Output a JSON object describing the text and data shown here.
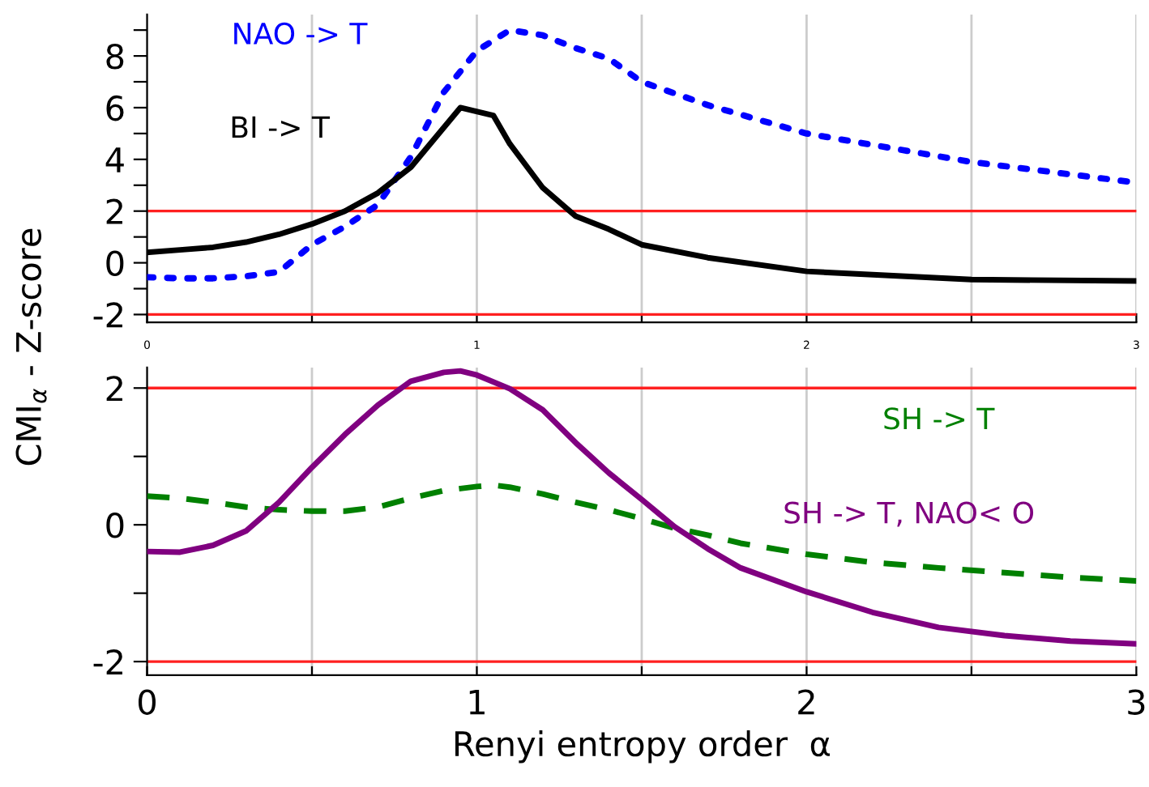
{
  "chart_data": [
    {
      "type": "line",
      "ylabel": "CMI$_{α}$ - Z-score",
      "grid": "x",
      "tick_labels": "xy",
      "xlim": [
        0,
        3
      ],
      "xticks": [
        0,
        {
          "value": 0.5,
          "label": null
        },
        1,
        {
          "value": 1.5,
          "label": null
        },
        2,
        {
          "value": 2.5,
          "label": null
        },
        3
      ],
      "ylim": [
        -2.3,
        9.6
      ],
      "yticks": [
        -2,
        {
          "value": -1,
          "label": null
        },
        0,
        {
          "value": 1,
          "label": null
        },
        2,
        {
          "value": 3,
          "label": null
        },
        4,
        {
          "value": 5,
          "label": null
        },
        6,
        {
          "value": 7,
          "label": null
        },
        8,
        {
          "value": 9,
          "label": null
        }
      ],
      "ref_lines": [
        {
          "axis": "y",
          "value": 2,
          "label": null,
          "color": "#ff2020"
        },
        {
          "axis": "y",
          "value": -2,
          "label": null,
          "color": "#ff2020"
        }
      ],
      "series": [
        {
          "name": "NAO -> T",
          "color": "#0000ff",
          "line_style": "dotted",
          "x": [
            0,
            0.1,
            0.2,
            0.3,
            0.4,
            0.5,
            0.6,
            0.7,
            0.8,
            0.9,
            1.0,
            1.1,
            1.2,
            1.3,
            1.4,
            1.5,
            1.7,
            2.0,
            2.5,
            3.0
          ],
          "values": [
            -0.56,
            -0.6,
            -0.6,
            -0.52,
            -0.35,
            0.7,
            1.4,
            2.25,
            4.1,
            6.6,
            8.2,
            9.0,
            8.8,
            8.3,
            7.9,
            7.0,
            6.1,
            5.0,
            3.9,
            3.1
          ]
        },
        {
          "name": "BI -> T",
          "color": "#000000",
          "line_style": "solid",
          "x": [
            0,
            0.1,
            0.2,
            0.3,
            0.4,
            0.5,
            0.6,
            0.7,
            0.8,
            0.95,
            1.05,
            1.1,
            1.2,
            1.3,
            1.4,
            1.5,
            1.7,
            2.0,
            2.5,
            3.0
          ],
          "values": [
            0.4,
            0.5,
            0.6,
            0.8,
            1.1,
            1.5,
            2.0,
            2.7,
            3.7,
            6.0,
            5.7,
            4.6,
            2.9,
            1.8,
            1.3,
            0.7,
            0.2,
            -0.33,
            -0.65,
            -0.7
          ]
        }
      ]
    },
    {
      "type": "line",
      "xlabel": "Renyi entropy order  α",
      "grid": "x",
      "xlim": [
        0,
        3
      ],
      "xticks": [
        0,
        {
          "value": 0.5,
          "label": null
        },
        1,
        {
          "value": 1.5,
          "label": null
        },
        2,
        {
          "value": 2.5,
          "label": null
        },
        3
      ],
      "ylim": [
        -2.2,
        2.3
      ],
      "yticks": [
        -2,
        {
          "value": -1,
          "label": null
        },
        0,
        {
          "value": 1,
          "label": null
        },
        2
      ],
      "ref_lines": [
        {
          "axis": "y",
          "value": 2,
          "label": null,
          "color": "#ff2020"
        },
        {
          "axis": "y",
          "value": -2,
          "label": null,
          "color": "#ff2020"
        }
      ],
      "series": [
        {
          "name": "SH -> T",
          "color": "#008000",
          "line_style": "dashed",
          "x": [
            0,
            0.1,
            0.2,
            0.3,
            0.4,
            0.5,
            0.6,
            0.7,
            0.8,
            0.9,
            1.0,
            1.05,
            1.1,
            1.2,
            1.3,
            1.4,
            1.5,
            1.6,
            1.7,
            1.8,
            2.0,
            2.2,
            2.4,
            2.6,
            2.8,
            3.0
          ],
          "values": [
            0.42,
            0.39,
            0.33,
            0.26,
            0.22,
            0.2,
            0.2,
            0.26,
            0.39,
            0.5,
            0.56,
            0.58,
            0.55,
            0.45,
            0.33,
            0.22,
            0.09,
            -0.05,
            -0.15,
            -0.27,
            -0.43,
            -0.55,
            -0.63,
            -0.7,
            -0.77,
            -0.82
          ]
        },
        {
          "name": "SH -> T, NAO< O",
          "color": "#800080",
          "line_style": "solid",
          "x": [
            0,
            0.1,
            0.2,
            0.3,
            0.4,
            0.5,
            0.6,
            0.7,
            0.8,
            0.9,
            0.95,
            1.0,
            1.1,
            1.2,
            1.3,
            1.4,
            1.5,
            1.6,
            1.7,
            1.8,
            2.0,
            2.2,
            2.4,
            2.6,
            2.8,
            3.0
          ],
          "values": [
            -0.39,
            -0.4,
            -0.3,
            -0.09,
            0.33,
            0.84,
            1.32,
            1.75,
            2.1,
            2.23,
            2.25,
            2.19,
            1.99,
            1.68,
            1.2,
            0.76,
            0.37,
            -0.03,
            -0.35,
            -0.63,
            -0.98,
            -1.28,
            -1.5,
            -1.62,
            -1.7,
            -1.74
          ]
        }
      ]
    }
  ]
}
